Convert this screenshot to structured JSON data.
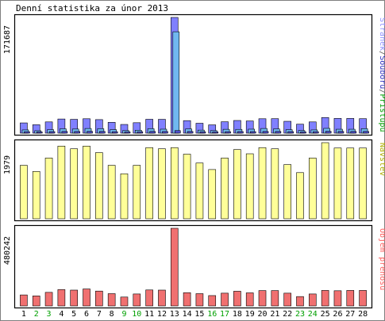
{
  "chart_data": {
    "type": "bar",
    "title": "Denní statistika za únor 2013",
    "categories": [
      "1",
      "2",
      "3",
      "4",
      "5",
      "6",
      "7",
      "8",
      "9",
      "10",
      "11",
      "12",
      "13",
      "14",
      "15",
      "16",
      "17",
      "18",
      "19",
      "20",
      "21",
      "22",
      "23",
      "24",
      "25",
      "26",
      "27",
      "28"
    ],
    "weekend_days": [
      "2",
      "3",
      "9",
      "10",
      "16",
      "17",
      "23",
      "24"
    ],
    "panels": [
      {
        "id": "hits",
        "ymax_label": "171687",
        "ymax": 171687,
        "right_label_parts": [
          {
            "text": "Stránek",
            "color": "#9090ff"
          },
          {
            "text": "/",
            "color": "#555555"
          },
          {
            "text": "Souborů",
            "color": "#3030c0"
          },
          {
            "text": "/",
            "color": "#555555"
          },
          {
            "text": "Přístupů",
            "color": "#00a000"
          }
        ],
        "series": [
          {
            "name": "Přístupů",
            "color": "#8080ff",
            "values": [
              15200,
              12500,
              16700,
              21000,
              20500,
              21400,
              20100,
              16100,
              12900,
              15500,
              20600,
              20500,
              171687,
              18600,
              14700,
              12300,
              16900,
              18800,
              18100,
              21400,
              21500,
              17600,
              13300,
              16700,
              23200,
              21900,
              21900,
              21500
            ]
          },
          {
            "name": "Souborů",
            "color": "#70b8f0",
            "values": [
              4800,
              3600,
              5200,
              6400,
              6100,
              6900,
              6600,
              5200,
              3800,
              4300,
              6600,
              5900,
              150400,
              6200,
              4500,
              3800,
              5700,
              5600,
              5900,
              6900,
              6200,
              5200,
              3900,
              4800,
              7100,
              5800,
              5800,
              6700
            ]
          },
          {
            "name": "Stránek",
            "color": "#5050d0",
            "values": [
              2200,
              1900,
              2300,
              2600,
              2500,
              2700,
              2600,
              2200,
              1900,
              2100,
              2600,
              2500,
              3800,
              2500,
              2100,
              1900,
              2200,
              2400,
              2300,
              2600,
              2600,
              2300,
              1900,
              2200,
              2800,
              2600,
              2600,
              2600
            ]
          }
        ]
      },
      {
        "id": "visits",
        "ymax_label": "1979",
        "ymax": 1979,
        "right_label_parts": [
          {
            "text": "Návštěv",
            "color": "#b0b000"
          }
        ],
        "series": [
          {
            "name": "Návštěv",
            "color": "#ffff99",
            "values": [
              1390,
              1230,
              1580,
              1890,
              1820,
              1890,
              1720,
              1390,
              1170,
              1390,
              1850,
              1820,
              1850,
              1680,
              1450,
              1280,
              1580,
              1800,
              1690,
              1850,
              1820,
              1410,
              1200,
              1580,
              1979,
              1840,
              1840,
              1840
            ]
          }
        ]
      },
      {
        "id": "kbytes",
        "ymax_label": "480242",
        "ymax": 480242,
        "right_label_parts": [
          {
            "text": "Objem přenosu",
            "color": "#ff6060"
          }
        ],
        "series": [
          {
            "name": "Objem přenosu",
            "color": "#f07070",
            "values": [
              68000,
              62000,
              84000,
              101000,
              98000,
              105000,
              92000,
              76000,
              55000,
              74000,
              99000,
              98000,
              480242,
              82000,
              76000,
              64000,
              79000,
              91000,
              81000,
              95000,
              95000,
              79000,
              58000,
              74000,
              96000,
              94000,
              96000,
              96000
            ]
          }
        ]
      }
    ]
  }
}
